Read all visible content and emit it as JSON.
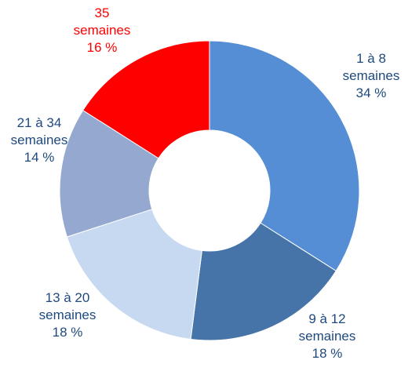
{
  "chart_data": {
    "type": "pie",
    "variant": "donut",
    "title": "",
    "legend": "none",
    "slices": [
      {
        "label_lines": [
          "1 à 8",
          "semaines",
          "34  %"
        ],
        "value": 34,
        "color": "#558ED5"
      },
      {
        "label_lines": [
          "9 à 12",
          "semaines",
          "18 %"
        ],
        "value": 18,
        "color": "#4674A8"
      },
      {
        "label_lines": [
          "13 à 20",
          "semaines",
          "18 %"
        ],
        "value": 18,
        "color": "#C6D9F1"
      },
      {
        "label_lines": [
          "21 à 34",
          "semaines",
          "14 %"
        ],
        "value": 14,
        "color": "#95A9D0"
      },
      {
        "label_lines": [
          "35",
          "semaines",
          "16 %"
        ],
        "value": 16,
        "color": "#FF0000"
      }
    ],
    "label_colors": {
      "default": "#1F497D",
      "highlight": "#FF0000"
    }
  }
}
